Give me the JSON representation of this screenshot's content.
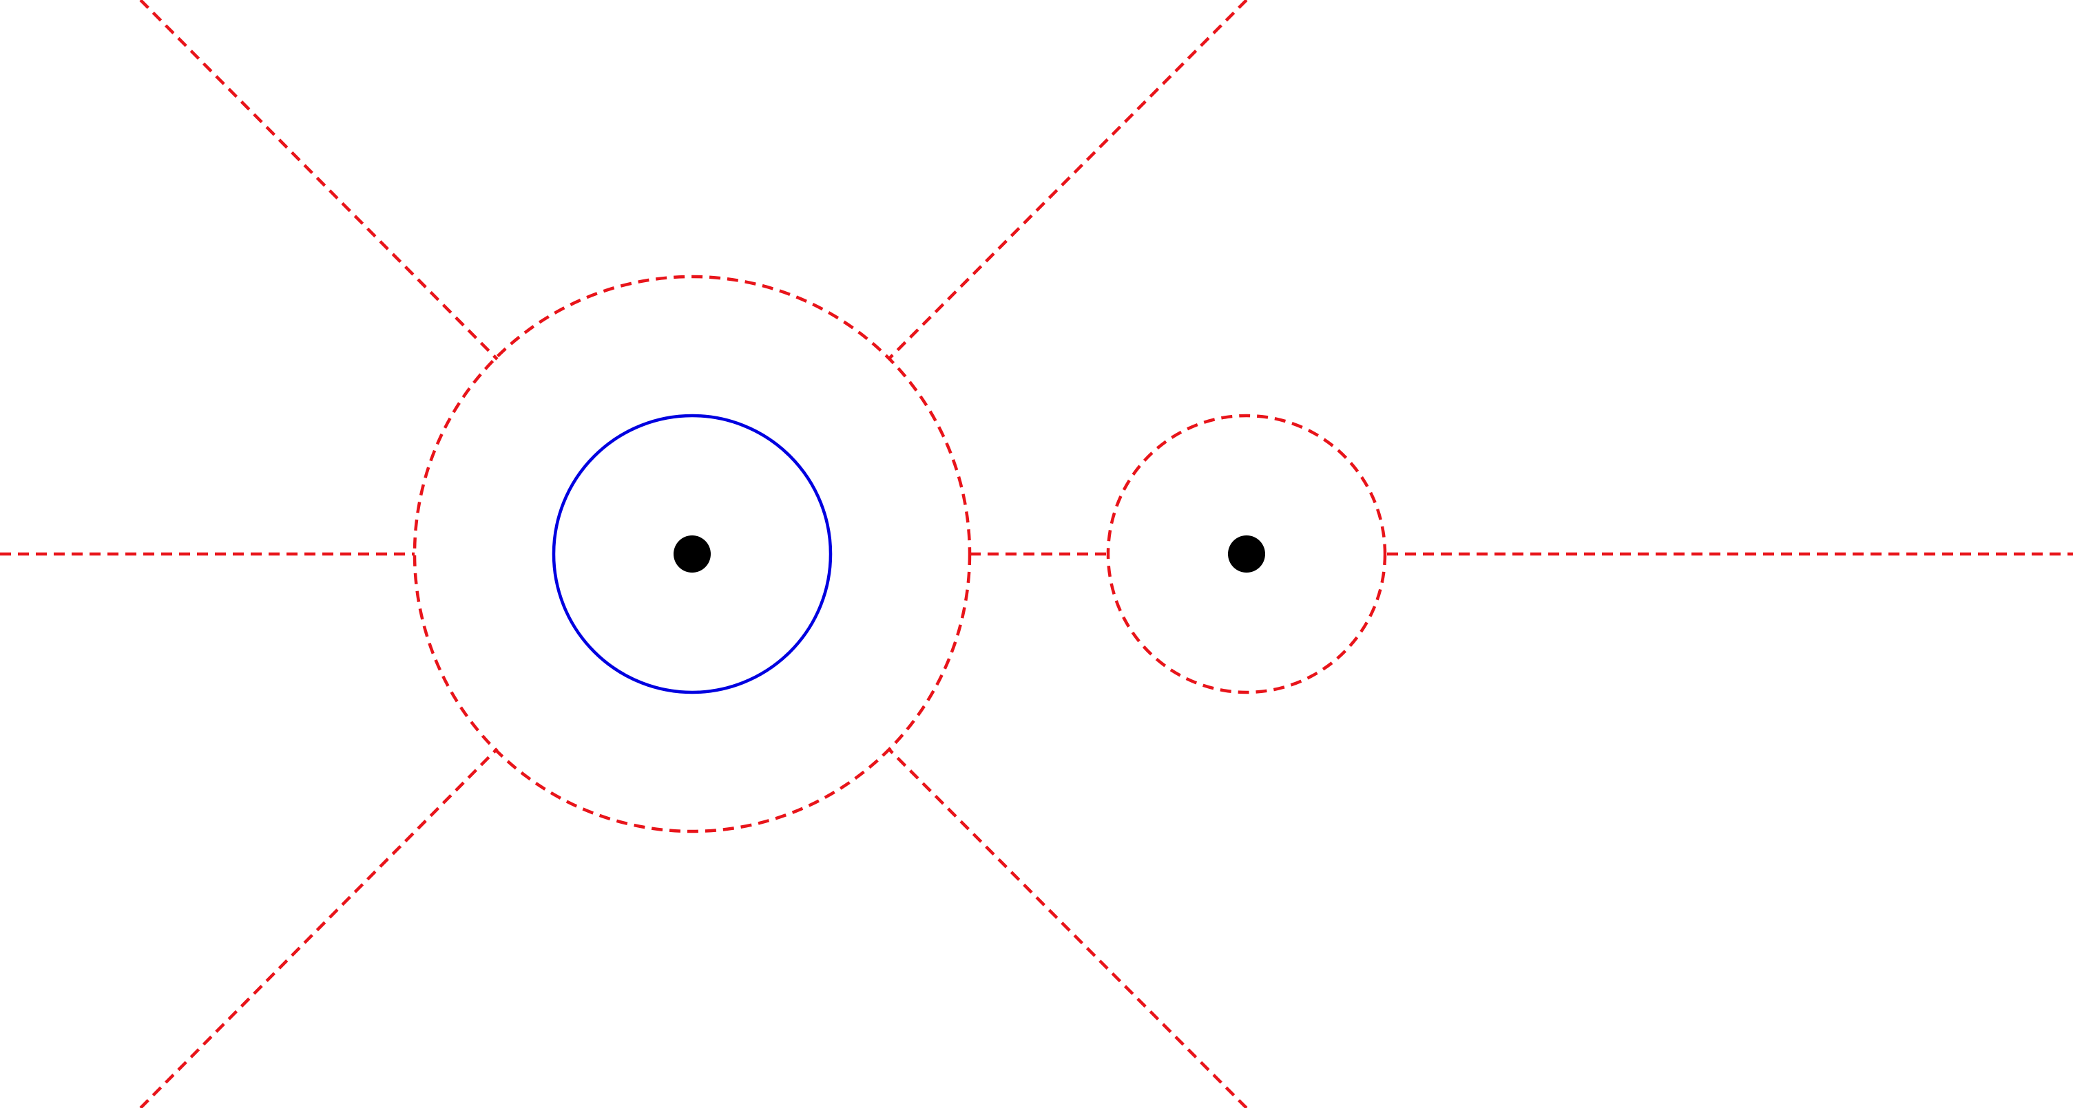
{
  "diagram": {
    "colors": {
      "background": "#ffffff",
      "dashed_lines": "#e8141a",
      "solid_circle": "#0000e0",
      "points": "#000000"
    }
  }
}
